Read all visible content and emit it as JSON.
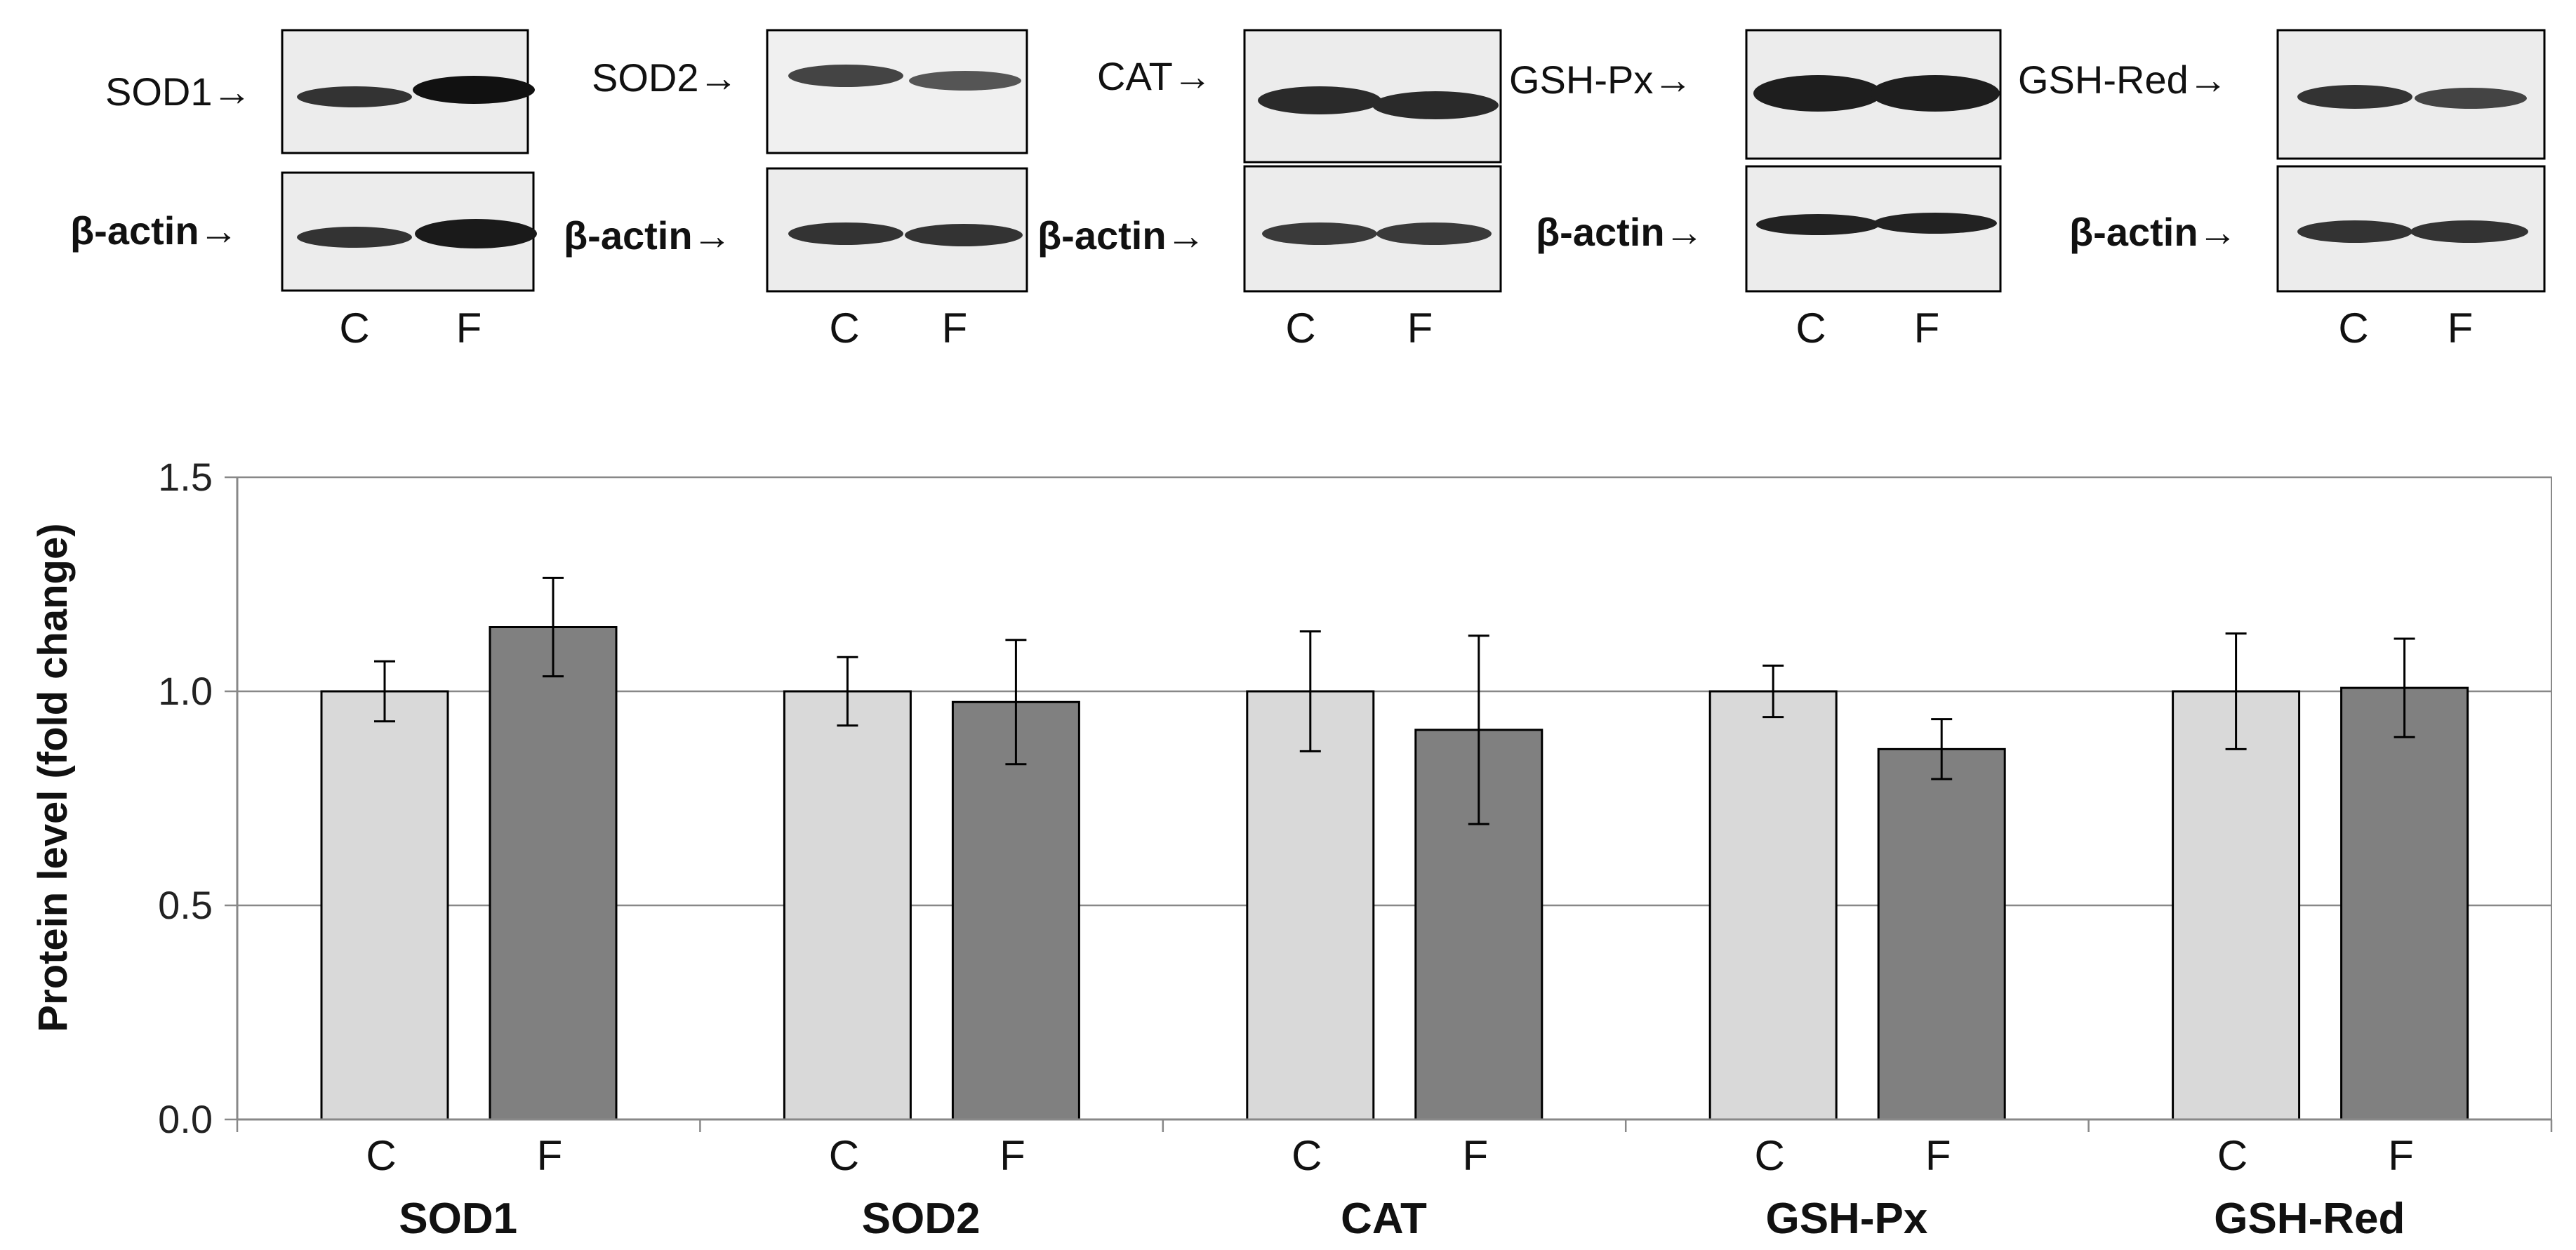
{
  "blots": [
    {
      "protein": "SOD1",
      "label": "SOD1→",
      "control_label": "β-actin→",
      "lanes": [
        "C",
        "F"
      ],
      "top_band": [
        "#333333",
        "#111111"
      ],
      "bottom_band": [
        "#333333",
        "#1a1a1a"
      ]
    },
    {
      "protein": "SOD2",
      "label": "SOD2→",
      "control_label": "β-actin→",
      "lanes": [
        "C",
        "F"
      ],
      "top_band": [
        "#444444",
        "#555555"
      ],
      "bottom_band": [
        "#333333",
        "#333333"
      ]
    },
    {
      "protein": "CAT",
      "label": "CAT→",
      "control_label": "β-actin→",
      "lanes": [
        "C",
        "F"
      ],
      "top_band": [
        "#2a2a2a",
        "#2a2a2a"
      ],
      "bottom_band": [
        "#3a3a3a",
        "#3a3a3a"
      ]
    },
    {
      "protein": "GSH-Px",
      "label": "GSH-Px→",
      "control_label": "β-actin→",
      "lanes": [
        "C",
        "F"
      ],
      "top_band": [
        "#1e1e1e",
        "#1e1e1e"
      ],
      "bottom_band": [
        "#222222",
        "#222222"
      ]
    },
    {
      "protein": "GSH-Red",
      "label": "GSH-Red→",
      "control_label": "β-actin→",
      "lanes": [
        "C",
        "F"
      ],
      "top_band": [
        "#333333",
        "#444444"
      ],
      "bottom_band": [
        "#333333",
        "#333333"
      ]
    }
  ],
  "chart_data": {
    "type": "bar",
    "title": "",
    "xlabel": "",
    "ylabel": "Protein level (fold change)",
    "ylim": [
      0,
      1.5
    ],
    "yticks": [
      "0.0",
      "0.5",
      "1.0",
      "1.5"
    ],
    "grid": true,
    "legend": "none",
    "categories": [
      "SOD1",
      "SOD2",
      "CAT",
      "GSH-Px",
      "GSH-Red"
    ],
    "series": [
      {
        "sublabel": "C",
        "color": "#d9d9d9",
        "values": [
          1.0,
          1.0,
          1.0,
          1.0,
          1.0
        ],
        "errors": [
          0.07,
          0.08,
          0.14,
          0.06,
          0.135
        ]
      },
      {
        "sublabel": "F",
        "color": "#808080",
        "values": [
          1.15,
          0.975,
          0.91,
          0.865,
          1.008
        ],
        "errors": [
          0.115,
          0.145,
          0.22,
          0.07,
          0.115
        ]
      }
    ]
  }
}
